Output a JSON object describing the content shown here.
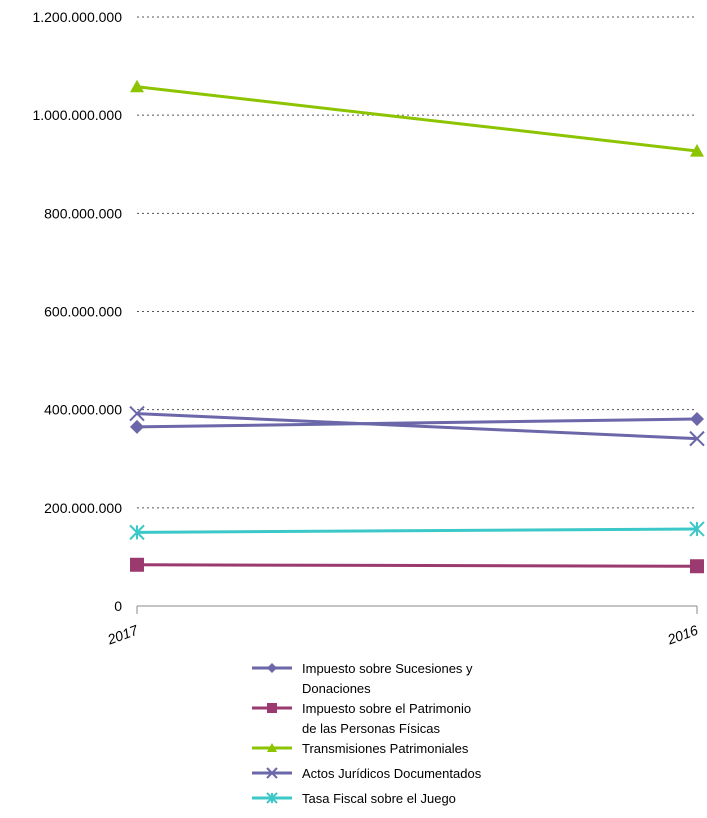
{
  "chart_data": {
    "type": "line",
    "categories": [
      "2017",
      "2016"
    ],
    "ylim": [
      0,
      1200000000
    ],
    "yticks": [
      0,
      200000000,
      400000000,
      600000000,
      800000000,
      1000000000,
      1200000000
    ],
    "ytick_labels": [
      "0",
      "200.000.000",
      "400.000.000",
      "600.000.000",
      "800.000.000",
      "1.000.000.000",
      "1.200.000.000"
    ],
    "grid": true,
    "legend_position": "bottom",
    "series": [
      {
        "name": "Impuesto sobre Sucesiones y Donaciones",
        "name_lines": [
          "Impuesto sobre Sucesiones y",
          "Donaciones"
        ],
        "values": [
          365000000,
          381000000
        ],
        "color": "#6b67a8",
        "marker": "diamond"
      },
      {
        "name": "Impuesto sobre el Patrimonio de las Personas Físicas",
        "name_lines": [
          "Impuesto sobre el Patrimonio",
          "de las Personas Físicas"
        ],
        "values": [
          84000000,
          81000000
        ],
        "color": "#9b3a6e",
        "marker": "square"
      },
      {
        "name": "Transmisiones Patrimoniales",
        "name_lines": [
          "Transmisiones Patrimoniales"
        ],
        "values": [
          1058000000,
          927000000
        ],
        "color": "#8cc400",
        "marker": "triangle"
      },
      {
        "name": "Actos Jurídicos Documentados",
        "name_lines": [
          "Actos Jurídicos Documentados"
        ],
        "values": [
          392000000,
          341000000
        ],
        "color": "#6b67a8",
        "marker": "x"
      },
      {
        "name": "Tasa Fiscal sobre el Juego",
        "name_lines": [
          "Tasa Fiscal sobre el Juego"
        ],
        "values": [
          150000000,
          157000000
        ],
        "color": "#3cc8c8",
        "marker": "star"
      }
    ]
  }
}
